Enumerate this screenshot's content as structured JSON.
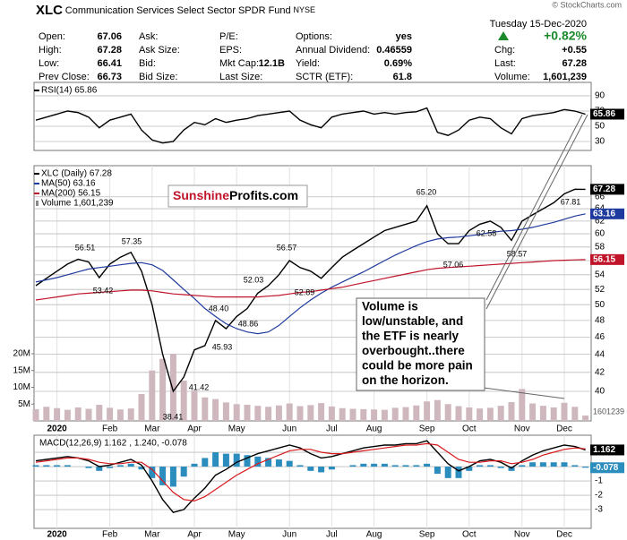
{
  "header": {
    "symbol": "XLC",
    "name": "Communication Services Select Sector SPDR Fund",
    "exchange": "NYSE",
    "date": "Tuesday 15-Dec-2020",
    "credit": "© StockCharts.com",
    "quote": [
      [
        {
          "label": "Open:",
          "value": "67.06"
        },
        {
          "label": "High:",
          "value": "67.28"
        },
        {
          "label": "Low:",
          "value": "66.41"
        },
        {
          "label": "Prev Close:",
          "value": "66.73"
        }
      ],
      [
        {
          "label": "Ask:"
        },
        {
          "label": "Ask Size:"
        },
        {
          "label": "Bid:"
        },
        {
          "label": "Bid Size:"
        }
      ],
      [
        {
          "label": "P/E:"
        },
        {
          "label": "EPS:"
        },
        {
          "label": "Mkt Cap:",
          "value": "12.1B"
        },
        {
          "label": "Last Size:"
        }
      ],
      [
        {
          "label": "Options:",
          "value": "yes"
        },
        {
          "label": "Annual Dividend:",
          "value": "0.46559"
        },
        {
          "label": "Yield:",
          "value": "0.69%"
        },
        {
          "label": "SCTR (ETF):",
          "value": "61.8"
        }
      ],
      [
        {
          "value": "+0.82%"
        },
        {
          "label": "Chg:",
          "value": "+0.55"
        },
        {
          "label": "Last:",
          "value": "67.28"
        },
        {
          "label": "Volume:",
          "value": "1,601,239"
        }
      ]
    ]
  },
  "watermark": [
    "Sunshine",
    "Profits.com"
  ],
  "callout": [
    "Volume is",
    "low/unstable, and",
    "the ETF is nearly",
    "overbought..there",
    "could be more pain",
    "on the horizon."
  ],
  "chart_data": [
    {
      "type": "line",
      "ylim": [
        18.2,
        107.6
      ],
      "yticks": [
        30,
        50,
        70,
        90
      ],
      "grid": true,
      "series": [
        {
          "name": "RSI(14) 65.86",
          "color": "#000000",
          "end_label": "65.86",
          "values": [
            58,
            62,
            66,
            70,
            68,
            62,
            48,
            58,
            62,
            66,
            45,
            32,
            28,
            30,
            45,
            55,
            52,
            60,
            55,
            58,
            60,
            64,
            66,
            68,
            70,
            58,
            52,
            48,
            62,
            66,
            68,
            70,
            66,
            68,
            66,
            68,
            69,
            74,
            42,
            38,
            45,
            58,
            62,
            60,
            48,
            40,
            60,
            64,
            66,
            68,
            72,
            70,
            65.86
          ]
        }
      ]
    },
    {
      "type": "line",
      "log_scale": true,
      "grid": true,
      "categories": [
        null,
        null,
        "2020",
        null,
        null,
        null,
        null,
        "Feb",
        null,
        null,
        null,
        "Mar",
        null,
        null,
        null,
        "Apr",
        null,
        null,
        null,
        "May",
        null,
        null,
        null,
        null,
        "Jun",
        null,
        null,
        null,
        "Jul",
        null,
        null,
        null,
        "Aug",
        null,
        null,
        null,
        null,
        "Sep",
        null,
        null,
        null,
        "Oct",
        null,
        null,
        null,
        null,
        "Nov",
        null,
        null,
        null,
        "Dec",
        null,
        null
      ],
      "ylim": [
        37.07,
        71.5
      ],
      "yticks": [
        40,
        42,
        44,
        46,
        48,
        50,
        52,
        54,
        56,
        58,
        60,
        62,
        64,
        66
      ],
      "y2lim": [
        0,
        76000000
      ],
      "y2ticks": [
        {
          "value": 5000000,
          "label": "5M"
        },
        {
          "value": 10000000,
          "label": "10M"
        },
        {
          "value": 15000000,
          "label": "15M"
        },
        {
          "value": 20000000,
          "label": "20M"
        }
      ],
      "annotations": [
        "56.51",
        "53.42",
        "57.35",
        "38.41",
        "41.42",
        "45.93",
        "48.40",
        "48.86",
        "52.03",
        "56.57",
        "52.89",
        "65.20",
        "57.06",
        "62.58",
        "58.57",
        "67.81"
      ],
      "series": [
        {
          "name": "XLC (Daily) 67.28",
          "color": "#000000",
          "end_label": "67.28",
          "values": [
            52.5,
            53.5,
            54.5,
            55.5,
            56.2,
            55.8,
            53.6,
            55.5,
            56.5,
            57.2,
            54.5,
            50,
            44,
            40,
            41.5,
            44.5,
            45,
            48,
            47,
            48.5,
            49.5,
            51.5,
            52.5,
            54,
            56,
            55,
            54.5,
            53.5,
            55,
            56.5,
            57.5,
            58.5,
            59.5,
            60.5,
            61,
            61.5,
            62,
            64.5,
            60,
            58.5,
            58.5,
            60.5,
            61.5,
            62,
            61,
            59,
            62,
            63,
            64,
            65,
            66.5,
            67.3,
            67.28
          ]
        },
        {
          "name": "MA(50) 63.16",
          "color": "#1f3a9e",
          "end_label": "63.16",
          "values": [
            53.0,
            53.3,
            53.6,
            54.0,
            54.4,
            54.8,
            55.0,
            55.2,
            55.4,
            55.6,
            55.7,
            55.4,
            54.6,
            53.3,
            52.0,
            50.8,
            49.5,
            48.5,
            47.6,
            47.0,
            46.6,
            46.4,
            46.6,
            47.4,
            48.5,
            49.6,
            50.6,
            51.5,
            52.3,
            53.0,
            53.7,
            54.4,
            55.2,
            56.0,
            56.8,
            57.5,
            58.2,
            58.8,
            59.2,
            59.4,
            59.5,
            59.7,
            59.9,
            60.2,
            60.4,
            60.5,
            60.7,
            61.0,
            61.4,
            61.8,
            62.3,
            62.8,
            63.16
          ]
        },
        {
          "name": "MA(200) 56.15",
          "color": "#c0142a",
          "end_label": "56.15",
          "values": [
            50.6,
            50.8,
            51.0,
            51.2,
            51.4,
            51.5,
            51.6,
            51.7,
            51.8,
            51.9,
            51.9,
            51.8,
            51.6,
            51.4,
            51.3,
            51.2,
            51.1,
            51.0,
            51.0,
            51.0,
            51.0,
            51.0,
            51.1,
            51.2,
            51.4,
            51.6,
            51.7,
            51.9,
            52.1,
            52.3,
            52.6,
            52.9,
            53.2,
            53.5,
            53.8,
            54.1,
            54.4,
            54.7,
            54.9,
            55.0,
            55.1,
            55.2,
            55.3,
            55.4,
            55.5,
            55.6,
            55.7,
            55.8,
            55.9,
            56.0,
            56.05,
            56.1,
            56.15
          ]
        },
        {
          "name": "Volume 1,601,239",
          "type": "bar",
          "axis": "y2",
          "color": "#cfb8bd",
          "end_label": "1601239",
          "values": [
            3500000,
            4200000,
            3800000,
            3300000,
            4000000,
            3600000,
            4800000,
            3900000,
            3400000,
            3700000,
            8000000,
            15000000,
            18500000,
            20000000,
            12000000,
            9000000,
            7000000,
            6500000,
            5500000,
            5000000,
            4800000,
            4500000,
            4200000,
            4600000,
            5200000,
            4400000,
            4700000,
            5300000,
            4300000,
            3800000,
            3600000,
            3500000,
            3400000,
            3300000,
            3900000,
            4100000,
            4600000,
            5800000,
            6200000,
            5000000,
            4400000,
            4000000,
            3700000,
            3900000,
            4500000,
            5600000,
            9500000,
            5200000,
            4500000,
            4000000,
            5400000,
            4200000,
            1601239
          ]
        }
      ]
    },
    {
      "type": "line",
      "grid": true,
      "categories": [
        null,
        null,
        "2020",
        null,
        null,
        null,
        null,
        "Feb",
        null,
        null,
        null,
        "Mar",
        null,
        null,
        null,
        "Apr",
        null,
        null,
        null,
        "May",
        null,
        null,
        null,
        null,
        "Jun",
        null,
        null,
        null,
        "Jul",
        null,
        null,
        null,
        "Aug",
        null,
        null,
        null,
        null,
        "Sep",
        null,
        null,
        null,
        "Oct",
        null,
        null,
        null,
        null,
        "Nov",
        null,
        null,
        null,
        "Dec",
        null,
        null
      ],
      "ylim": [
        -4.31,
        2.19
      ],
      "yticks": [
        -3,
        -2,
        -1,
        0,
        1
      ],
      "series": [
        {
          "name": "MACD(12,26,9) 1.162",
          "color": "#000000",
          "end_label": "1.162",
          "values": [
            0.4,
            0.5,
            0.6,
            0.7,
            0.6,
            0.4,
            0.0,
            0.1,
            0.3,
            0.5,
            0.1,
            -1.0,
            -2.3,
            -3.2,
            -3.0,
            -2.2,
            -1.5,
            -0.6,
            -0.2,
            0.3,
            0.6,
            0.9,
            1.1,
            1.3,
            1.5,
            1.3,
            0.9,
            0.6,
            0.7,
            0.9,
            1.1,
            1.3,
            1.4,
            1.5,
            1.5,
            1.6,
            1.6,
            1.8,
            1.0,
            0.2,
            -0.3,
            0.0,
            0.4,
            0.5,
            0.3,
            -0.1,
            0.4,
            0.8,
            1.1,
            1.3,
            1.5,
            1.4,
            1.162
          ]
        },
        {
          "name": ", 1.240",
          "color": "#d7191c",
          "values": [
            0.3,
            0.4,
            0.5,
            0.6,
            0.6,
            0.5,
            0.3,
            0.2,
            0.2,
            0.3,
            0.3,
            -0.2,
            -1.0,
            -1.8,
            -2.3,
            -2.4,
            -2.1,
            -1.6,
            -1.1,
            -0.6,
            -0.2,
            0.2,
            0.5,
            0.8,
            1.1,
            1.2,
            1.2,
            1.0,
            0.9,
            0.9,
            1.0,
            1.1,
            1.2,
            1.3,
            1.4,
            1.5,
            1.5,
            1.6,
            1.5,
            1.0,
            0.5,
            0.3,
            0.3,
            0.4,
            0.4,
            0.2,
            0.3,
            0.5,
            0.8,
            1.0,
            1.2,
            1.3,
            1.24
          ]
        },
        {
          "name": ", -0.078",
          "type": "bar",
          "color": "#2b8cbe",
          "end_label": "-0.078",
          "values": [
            0.1,
            0.1,
            0.1,
            0.1,
            0,
            -0.1,
            -0.3,
            -0.1,
            0.1,
            0.2,
            -0.2,
            -0.8,
            -1.3,
            -1.4,
            -0.7,
            0.2,
            0.6,
            1.0,
            0.9,
            0.9,
            0.8,
            0.7,
            0.6,
            0.5,
            0.4,
            0.1,
            -0.3,
            -0.4,
            -0.2,
            0,
            0.1,
            0.2,
            0.2,
            0.2,
            0.1,
            0.1,
            0.1,
            0.2,
            -0.5,
            -0.8,
            -0.8,
            -0.3,
            0.1,
            0.1,
            -0.1,
            -0.3,
            0.1,
            0.3,
            0.3,
            0.3,
            0.3,
            0.1,
            -0.078
          ]
        }
      ]
    }
  ]
}
